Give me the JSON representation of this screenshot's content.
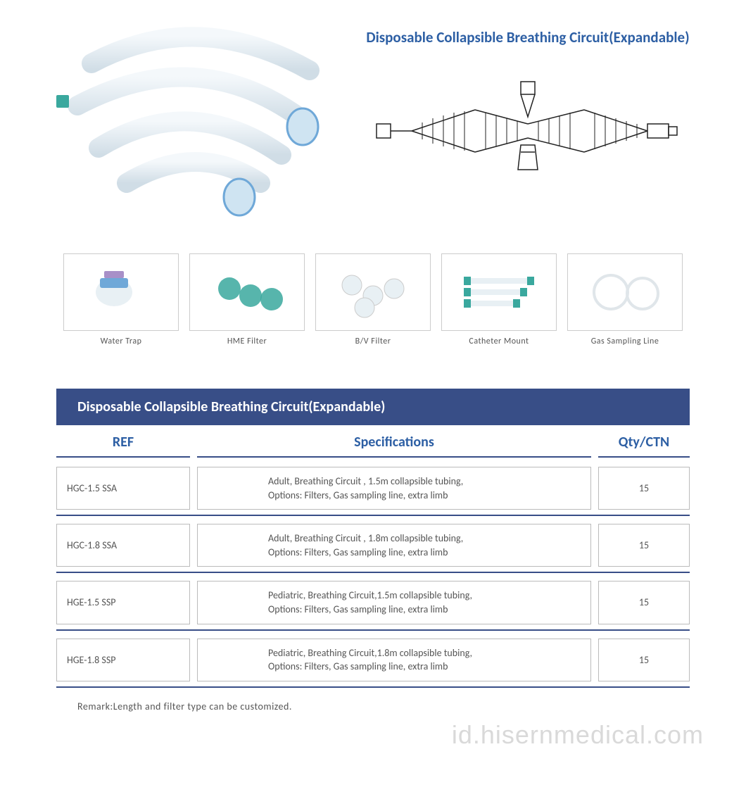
{
  "colors": {
    "title_blue": "#2d5fa4",
    "header_bar": "#384e87",
    "divider": "#384e87",
    "border_gray": "#bbbbbb",
    "text_gray": "#555555",
    "tube_light": "#e8f0f4",
    "tube_blue": "#6fa8d8",
    "tube_teal": "#3aa89e",
    "tube_violet": "#a890c8"
  },
  "title": "Disposable Collapsible Breathing Circuit(Expandable)",
  "thumbnails": [
    {
      "label": "Water Trap"
    },
    {
      "label": "HME Filter"
    },
    {
      "label": "B/V Filter"
    },
    {
      "label": "Catheter Mount"
    },
    {
      "label": "Gas Sampling Line"
    }
  ],
  "table": {
    "header_title": "Disposable Collapsible Breathing Circuit(Expandable)",
    "columns": {
      "ref": "REF",
      "spec": "Specifications",
      "qty": "Qty/CTN"
    },
    "rows": [
      {
        "ref": "HGC-1.5 SSA",
        "spec": "Adult, Breathing Circuit , 1.5m collapsible tubing,\nOptions: Filters, Gas sampling line, extra limb",
        "qty": "15"
      },
      {
        "ref": "HGC-1.8 SSA",
        "spec": "Adult, Breathing Circuit , 1.8m collapsible tubing,\nOptions: Filters, Gas sampling line, extra limb",
        "qty": "15"
      },
      {
        "ref": "HGE-1.5 SSP",
        "spec": "Pediatric, Breathing Circuit,1.5m collapsible tubing,\nOptions: Filters, Gas sampling line, extra limb",
        "qty": "15"
      },
      {
        "ref": "HGE-1.8 SSP",
        "spec": "Pediatric, Breathing Circuit,1.8m collapsible tubing,\nOptions: Filters, Gas sampling line, extra limb",
        "qty": "15"
      }
    ],
    "remark": "Remark:Length and filter type can be customized."
  },
  "watermark": "id.hisernmedical.com"
}
